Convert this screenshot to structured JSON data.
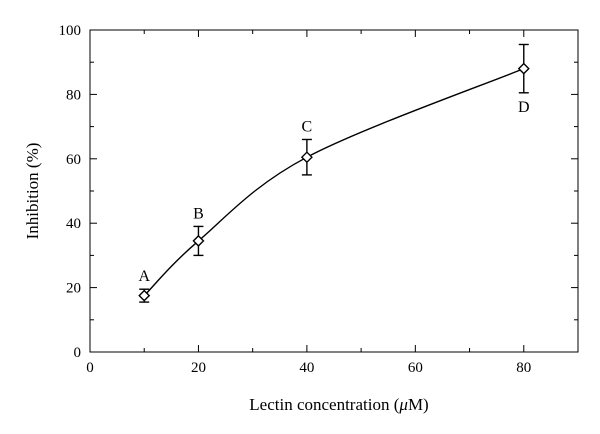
{
  "chart_data": {
    "type": "line",
    "xlabel_prefix": "Lectin concentration (",
    "xlabel_mu": "μ",
    "xlabel_suffix": "M)",
    "ylabel": "Inhibition (%)",
    "xlim": [
      0,
      90
    ],
    "ylim": [
      0,
      100
    ],
    "x_ticks": [
      0,
      20,
      40,
      60,
      80
    ],
    "y_ticks": [
      0,
      20,
      40,
      60,
      80,
      100
    ],
    "x_minor_step": 10,
    "y_minor_step": 10,
    "points": [
      {
        "label": "A",
        "x": 10,
        "y": 17.5,
        "err": 2
      },
      {
        "label": "B",
        "x": 20,
        "y": 34.5,
        "err": 4.5
      },
      {
        "label": "C",
        "x": 40,
        "y": 60.5,
        "err": 5.5
      },
      {
        "label": "D",
        "x": 80,
        "y": 88,
        "err": 7.5
      }
    ],
    "grid": false,
    "marker": "open-diamond",
    "line_color": "#000000"
  }
}
